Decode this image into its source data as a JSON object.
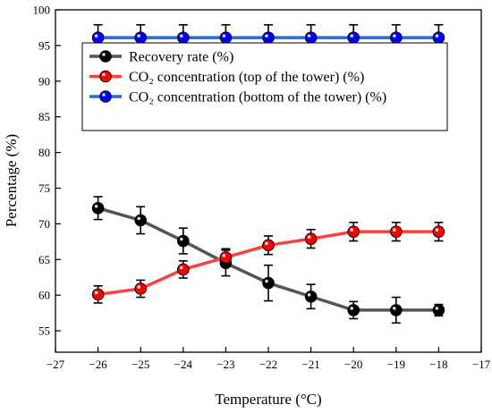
{
  "chart_data": {
    "type": "line",
    "xlabel": "Temperature (°C)",
    "ylabel": "Percentage (%)",
    "xlim": [
      -27,
      -17
    ],
    "ylim": [
      52,
      100
    ],
    "x_ticks": [
      -27,
      -26,
      -25,
      -24,
      -23,
      -22,
      -21,
      -20,
      -19,
      -18,
      -17
    ],
    "y_ticks": [
      55,
      60,
      65,
      70,
      75,
      80,
      85,
      90,
      95,
      100
    ],
    "x_tick_labels": [
      "−27",
      "−26",
      "−25",
      "−24",
      "−23",
      "−22",
      "−21",
      "−20",
      "−19",
      "−18",
      "−17"
    ],
    "y_tick_labels": [
      "55",
      "60",
      "65",
      "70",
      "75",
      "80",
      "85",
      "90",
      "95",
      "100"
    ],
    "x": [
      -26,
      -25,
      -24,
      -23,
      -22,
      -21,
      -20,
      -19,
      -18
    ],
    "legend_position": "upper-left",
    "grid": false,
    "series": [
      {
        "name": "Recovery rate (%)",
        "color": "#000000",
        "line_color": "#555555",
        "values": [
          72.2,
          70.5,
          67.6,
          64.5,
          61.7,
          59.8,
          57.9,
          57.9,
          57.9
        ],
        "errors": [
          1.6,
          1.9,
          1.8,
          1.8,
          2.5,
          1.7,
          1.2,
          1.8,
          0.8
        ]
      },
      {
        "name": "CO₂ concentration (top of the tower) (%)",
        "color": "#ff0000",
        "line_color": "#ff4040",
        "values": [
          60.1,
          60.9,
          63.6,
          65.3,
          67.0,
          67.9,
          68.9,
          68.9,
          68.9
        ],
        "errors": [
          1.2,
          1.2,
          1.2,
          1.2,
          1.3,
          1.3,
          1.3,
          1.3,
          1.3
        ]
      },
      {
        "name": "CO₂ concentration (bottom of the tower) (%)",
        "color": "#0000ff",
        "line_color": "#1f6fd1",
        "values": [
          96.1,
          96.1,
          96.1,
          96.1,
          96.1,
          96.1,
          96.1,
          96.1,
          96.1
        ],
        "errors": [
          1.8,
          1.8,
          1.8,
          1.8,
          1.8,
          1.8,
          1.8,
          1.8,
          1.8
        ]
      }
    ]
  }
}
